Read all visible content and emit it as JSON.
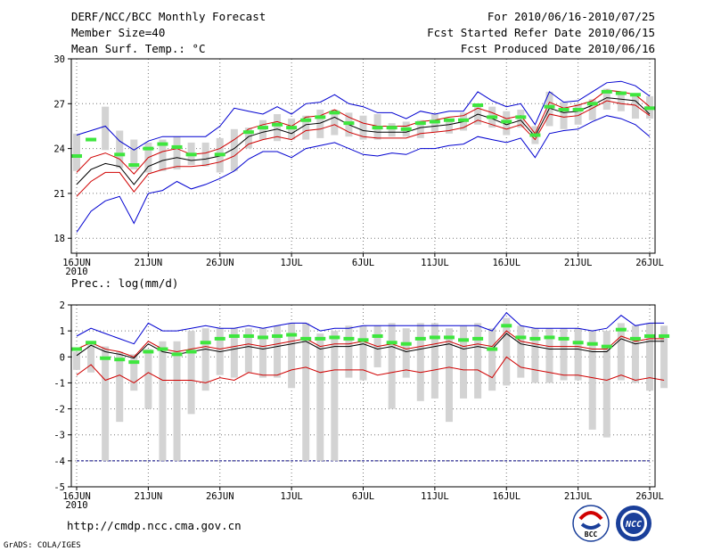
{
  "header": {
    "title_left": "DERF/NCC/BCC Monthly Forecast",
    "member_size": "Member Size=40",
    "variable": "Mean Surf. Temp.: °C",
    "title_right": "For 2010/06/16-2010/07/25",
    "refer_date": "Fcst Started Refer Date 2010/06/15",
    "produced_date": "Fcst Produced Date 2010/06/16"
  },
  "footer": {
    "url": "http://cmdp.ncc.cma.gov.cn",
    "credit": "GrADS: COLA/IGES",
    "logo_bcc": "BCC",
    "logo_ncc": "NCC"
  },
  "colors": {
    "box": "#d3d3d3",
    "green": "#3ee63e",
    "mean": "#000000",
    "lower": "#d00000",
    "upper": "#0000d0",
    "ref": "#000080",
    "grid": "#777777"
  },
  "chart_data": [
    {
      "id": "temperature",
      "type": "line",
      "title": "Mean Surf. Temp.: °C",
      "x_start": "2010-06-16",
      "x_tick_labels": [
        "16JUN",
        "21JUN",
        "26JUN",
        "1JUL",
        "6JUL",
        "11JUL",
        "16JUL",
        "21JUL",
        "26JUL"
      ],
      "x_year_label": "2010",
      "ylim": [
        17,
        30
      ],
      "y_ticks": [
        18,
        21,
        24,
        27,
        30
      ],
      "series": [
        {
          "name": "mean",
          "values": [
            21.6,
            22.6,
            23.0,
            22.8,
            21.6,
            22.8,
            23.2,
            23.4,
            23.2,
            23.3,
            23.5,
            24.0,
            24.8,
            25.1,
            25.3,
            25.0,
            25.6,
            25.7,
            26.1,
            25.6,
            25.2,
            25.1,
            25.1,
            25.1,
            25.4,
            25.5,
            25.6,
            25.8,
            26.3,
            26.0,
            25.6,
            25.9,
            24.8,
            26.7,
            26.4,
            26.5,
            26.9,
            27.4,
            27.3,
            27.2,
            26.3
          ]
        },
        {
          "name": "lower",
          "values": [
            20.8,
            21.8,
            22.4,
            22.4,
            21.1,
            22.3,
            22.6,
            22.8,
            22.8,
            22.9,
            23.1,
            23.5,
            24.3,
            24.6,
            24.8,
            24.6,
            25.2,
            25.3,
            25.6,
            25.1,
            24.8,
            24.7,
            24.7,
            24.7,
            25.0,
            25.1,
            25.2,
            25.4,
            25.9,
            25.6,
            25.3,
            25.6,
            24.6,
            26.3,
            26.1,
            26.2,
            26.7,
            27.2,
            27.0,
            26.9,
            26.2
          ]
        },
        {
          "name": "upper",
          "values": [
            22.4,
            23.4,
            23.7,
            23.3,
            22.3,
            23.4,
            23.8,
            24.0,
            23.6,
            23.7,
            24.0,
            24.6,
            25.3,
            25.6,
            25.8,
            25.5,
            26.1,
            26.2,
            26.6,
            26.1,
            25.7,
            25.5,
            25.5,
            25.5,
            25.8,
            25.9,
            26.1,
            26.2,
            26.7,
            26.4,
            26.0,
            26.2,
            25.0,
            27.1,
            26.7,
            26.9,
            27.2,
            27.9,
            27.8,
            27.6,
            26.8
          ]
        },
        {
          "name": "max",
          "values": [
            24.9,
            25.2,
            25.5,
            24.5,
            23.9,
            24.5,
            24.8,
            24.8,
            24.8,
            24.8,
            25.5,
            26.7,
            26.5,
            26.3,
            26.8,
            26.3,
            27.0,
            27.1,
            27.6,
            27.0,
            26.8,
            26.4,
            26.4,
            26.0,
            26.5,
            26.3,
            26.5,
            26.5,
            27.8,
            27.2,
            26.8,
            27.0,
            25.6,
            27.8,
            27.1,
            27.2,
            27.8,
            28.4,
            28.5,
            28.2,
            27.5
          ]
        },
        {
          "name": "min",
          "values": [
            18.4,
            19.8,
            20.5,
            20.8,
            19.0,
            21.0,
            21.2,
            21.8,
            21.3,
            21.6,
            22.0,
            22.5,
            23.3,
            23.8,
            23.8,
            23.4,
            24.0,
            24.2,
            24.4,
            24.0,
            23.6,
            23.5,
            23.7,
            23.6,
            24.0,
            24.0,
            24.2,
            24.3,
            24.8,
            24.6,
            24.4,
            24.7,
            23.4,
            25.0,
            25.2,
            25.3,
            25.8,
            26.2,
            26.0,
            25.6,
            24.8
          ]
        },
        {
          "name": "observed",
          "values": [
            23.5,
            24.6,
            null,
            23.6,
            22.9,
            24.0,
            24.3,
            24.1,
            23.6,
            null,
            23.6,
            null,
            25.1,
            25.4,
            25.6,
            25.4,
            25.9,
            26.1,
            26.4,
            25.7,
            null,
            25.4,
            25.4,
            25.3,
            25.7,
            25.8,
            25.9,
            25.9,
            26.9,
            26.1,
            25.8,
            26.1,
            24.9,
            26.8,
            26.6,
            26.6,
            27.0,
            27.8,
            27.7,
            27.6,
            26.7
          ]
        },
        {
          "name": "box_low",
          "values": [
            22.5,
            null,
            23.9,
            22.7,
            22.6,
            22.4,
            22.5,
            22.6,
            22.9,
            22.8,
            22.4,
            22.5,
            24.0,
            24.6,
            24.5,
            24.6,
            24.6,
            24.7,
            24.9,
            24.8,
            24.6,
            24.6,
            24.8,
            24.8,
            24.7,
            25.1,
            25.0,
            25.2,
            25.6,
            25.4,
            24.9,
            25.4,
            24.3,
            25.5,
            25.3,
            25.6,
            25.9,
            26.6,
            26.5,
            26.0,
            26.0
          ]
        },
        {
          "name": "box_high",
          "values": [
            25.0,
            null,
            26.8,
            25.2,
            24.6,
            24.4,
            24.6,
            24.8,
            24.4,
            24.4,
            24.7,
            25.3,
            25.4,
            25.9,
            26.3,
            26.0,
            26.2,
            26.6,
            26.6,
            26.4,
            26.2,
            26.3,
            25.7,
            25.8,
            25.9,
            26.3,
            26.0,
            26.4,
            27.0,
            26.8,
            26.5,
            26.6,
            25.5,
            27.8,
            27.1,
            27.0,
            27.3,
            28.0,
            27.7,
            27.7,
            27.5
          ]
        }
      ]
    },
    {
      "id": "precipitation",
      "type": "line",
      "title": "Prec.: log(mm/d)",
      "x_start": "2010-06-16",
      "x_tick_labels": [
        "16JUN",
        "21JUN",
        "26JUN",
        "1JUL",
        "6JUL",
        "11JUL",
        "16JUL",
        "21JUL",
        "26JUL"
      ],
      "x_year_label": "2010",
      "ylim": [
        -5,
        2
      ],
      "y_ticks": [
        -5,
        -4,
        -3,
        -2,
        -1,
        0,
        1,
        2
      ],
      "reference_line": -4,
      "series": [
        {
          "name": "mean",
          "values": [
            0.05,
            0.45,
            0.2,
            0.1,
            -0.05,
            0.5,
            0.2,
            0.1,
            0.2,
            0.3,
            0.2,
            0.3,
            0.4,
            0.3,
            0.4,
            0.5,
            0.6,
            0.3,
            0.4,
            0.4,
            0.5,
            0.3,
            0.4,
            0.2,
            0.3,
            0.4,
            0.5,
            0.3,
            0.4,
            0.3,
            0.9,
            0.5,
            0.4,
            0.3,
            0.3,
            0.3,
            0.2,
            0.2,
            0.7,
            0.5,
            0.6,
            0.6
          ]
        },
        {
          "name": "lower",
          "values": [
            -0.7,
            -0.3,
            -0.9,
            -0.7,
            -1.0,
            -0.6,
            -0.9,
            -0.9,
            -0.9,
            -1.0,
            -0.8,
            -0.9,
            -0.6,
            -0.7,
            -0.7,
            -0.5,
            -0.4,
            -0.6,
            -0.5,
            -0.5,
            -0.5,
            -0.7,
            -0.6,
            -0.5,
            -0.6,
            -0.5,
            -0.4,
            -0.5,
            -0.5,
            -0.8,
            0.0,
            -0.4,
            -0.5,
            -0.6,
            -0.7,
            -0.7,
            -0.8,
            -0.9,
            -0.7,
            -0.9,
            -0.8,
            -0.9
          ]
        },
        {
          "name": "upper",
          "values": [
            0.3,
            0.55,
            0.3,
            0.2,
            0.0,
            0.6,
            0.3,
            0.2,
            0.3,
            0.4,
            0.3,
            0.4,
            0.5,
            0.4,
            0.5,
            0.6,
            0.7,
            0.4,
            0.5,
            0.5,
            0.6,
            0.4,
            0.5,
            0.3,
            0.4,
            0.5,
            0.6,
            0.4,
            0.5,
            0.4,
            1.0,
            0.6,
            0.5,
            0.4,
            0.4,
            0.4,
            0.3,
            0.3,
            0.8,
            0.6,
            0.7,
            0.7
          ]
        },
        {
          "name": "max",
          "values": [
            0.8,
            1.1,
            0.9,
            0.7,
            0.5,
            1.3,
            1.0,
            1.0,
            1.1,
            1.2,
            1.1,
            1.1,
            1.2,
            1.1,
            1.2,
            1.3,
            1.3,
            1.0,
            1.1,
            1.1,
            1.2,
            1.2,
            1.2,
            1.2,
            1.2,
            1.2,
            1.2,
            1.2,
            1.2,
            1.0,
            1.7,
            1.2,
            1.1,
            1.1,
            1.1,
            1.1,
            1.0,
            1.1,
            1.6,
            1.2,
            1.3,
            1.3
          ]
        },
        {
          "name": "observed",
          "values": [
            0.3,
            0.55,
            -0.05,
            -0.1,
            -0.2,
            0.2,
            0.3,
            0.1,
            0.2,
            0.55,
            0.7,
            0.8,
            0.8,
            0.75,
            0.8,
            0.85,
            0.7,
            0.7,
            0.75,
            0.7,
            0.65,
            0.8,
            0.55,
            0.5,
            0.7,
            0.75,
            0.75,
            0.65,
            0.7,
            0.3,
            1.2,
            0.75,
            0.7,
            0.75,
            0.7,
            0.55,
            0.5,
            0.4,
            1.05,
            0.7,
            0.8,
            0.8
          ]
        },
        {
          "name": "box_low",
          "values": [
            -0.5,
            -0.6,
            -4.0,
            -2.5,
            -1.3,
            -2.0,
            -4.0,
            -4.0,
            -2.2,
            -1.3,
            -0.7,
            -0.8,
            -0.6,
            -0.8,
            -0.8,
            -1.2,
            -4.0,
            -4.0,
            -4.0,
            -0.8,
            -0.9,
            -0.4,
            -2.0,
            -0.8,
            -1.7,
            -1.6,
            -2.5,
            -1.6,
            -1.6,
            -1.3,
            -1.1,
            -0.8,
            -1.0,
            -1.0,
            -0.9,
            -0.9,
            -2.8,
            -3.1,
            -0.9,
            -1.0,
            -1.3,
            -1.2
          ]
        },
        {
          "name": "box_high",
          "values": [
            0.2,
            0.5,
            0.4,
            0.2,
            0.1,
            0.3,
            0.6,
            0.6,
            1.0,
            1.1,
            1.1,
            1.1,
            1.1,
            1.1,
            1.2,
            1.3,
            1.3,
            0.9,
            1.0,
            1.2,
            1.2,
            1.2,
            1.3,
            1.1,
            1.3,
            1.3,
            1.1,
            1.2,
            1.3,
            1.1,
            1.5,
            1.2,
            1.1,
            1.1,
            1.1,
            1.1,
            1.0,
            1.0,
            1.3,
            1.2,
            1.3,
            1.2
          ]
        }
      ]
    }
  ]
}
